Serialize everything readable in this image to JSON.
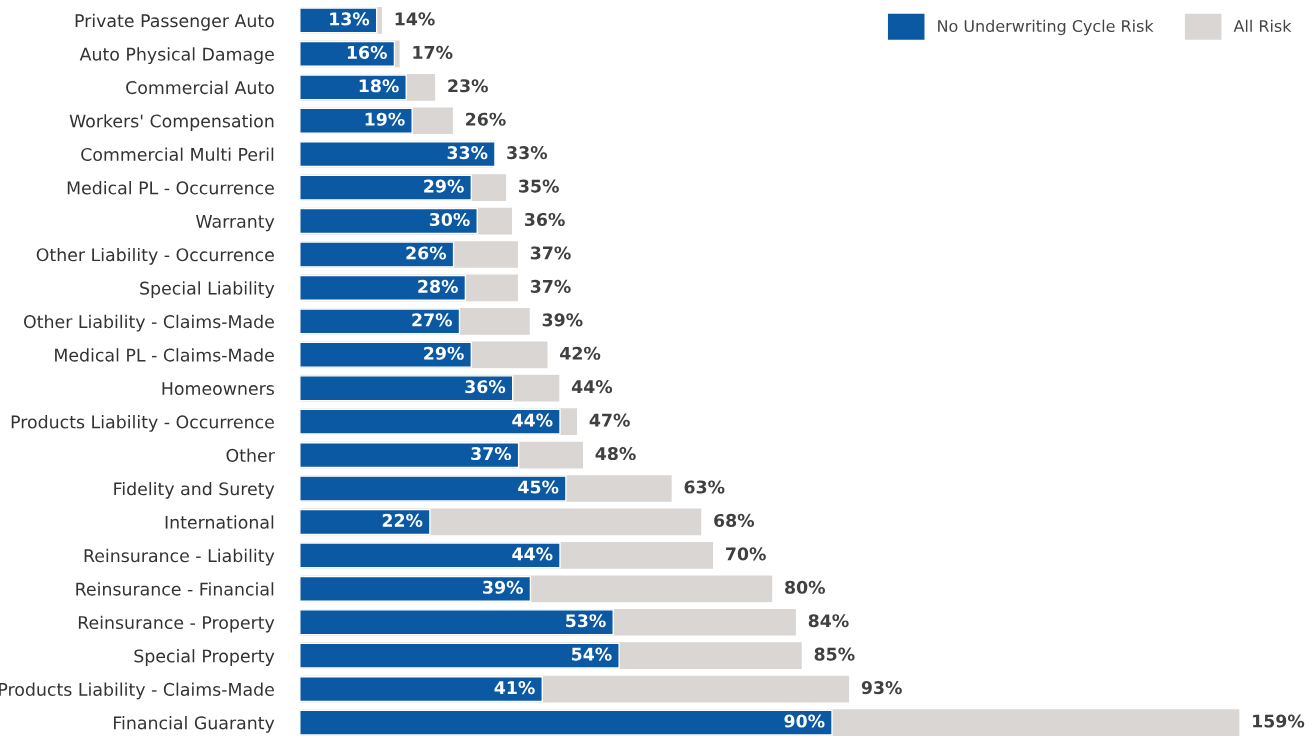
{
  "chart_data": {
    "type": "bar",
    "orientation": "horizontal",
    "stacked": false,
    "legend": "top right",
    "categories": [
      "Private Passenger Auto",
      "Auto Physical Damage",
      "Commercial Auto",
      "Workers' Compensation",
      "Commercial Multi Peril",
      "Medical PL - Occurrence",
      "Warranty",
      "Other Liability - Occurrence",
      "Special Liability",
      "Other Liability - Claims-Made",
      "Medical PL - Claims-Made",
      "Homeowners",
      "Products Liability - Occurrence",
      "Other",
      "Fidelity and Surety",
      "International",
      "Reinsurance - Liability",
      "Reinsurance - Financial",
      "Reinsurance - Property",
      "Special Property",
      "Products Liability - Claims-Made",
      "Financial Guaranty"
    ],
    "series": [
      {
        "name": "No Underwriting Cycle Risk",
        "color": "#0b58a3",
        "values": [
          13,
          16,
          18,
          19,
          33,
          29,
          30,
          26,
          28,
          27,
          29,
          36,
          44,
          37,
          45,
          22,
          44,
          39,
          53,
          54,
          41,
          90
        ],
        "value_labels": [
          "13%",
          "16%",
          "18%",
          "19%",
          "33%",
          "29%",
          "30%",
          "26%",
          "28%",
          "27%",
          "29%",
          "36%",
          "44%",
          "37%",
          "45%",
          "22%",
          "44%",
          "39%",
          "53%",
          "54%",
          "41%",
          "90%"
        ]
      },
      {
        "name": "All Risk",
        "color": "#d9d6d3",
        "values": [
          14,
          17,
          23,
          26,
          33,
          35,
          36,
          37,
          37,
          39,
          42,
          44,
          47,
          48,
          63,
          68,
          70,
          80,
          84,
          85,
          93,
          159
        ],
        "value_labels": [
          "14%",
          "17%",
          "23%",
          "26%",
          "33%",
          "35%",
          "36%",
          "37%",
          "37%",
          "39%",
          "42%",
          "44%",
          "47%",
          "48%",
          "63%",
          "68%",
          "70%",
          "80%",
          "84%",
          "85%",
          "93%",
          "159%"
        ]
      }
    ]
  }
}
